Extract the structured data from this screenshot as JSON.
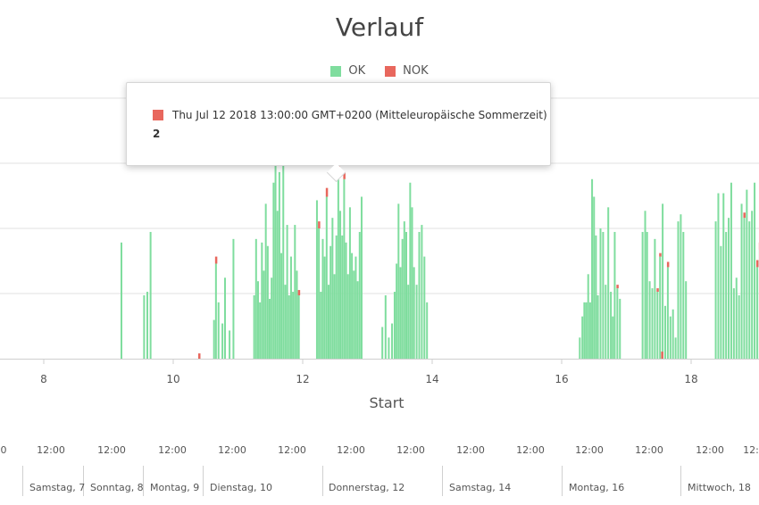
{
  "title": "Verlauf",
  "legend": {
    "ok_label": "OK",
    "nok_label": "NOK"
  },
  "colors": {
    "ok": "#7fdd9e",
    "nok": "#e8675d",
    "grid": "#e2e2e2",
    "axis": "#cfcfcf"
  },
  "tooltip": {
    "timestamp": "Thu Jul 12 2018 13:00:00 GMT+0200 (Mitteleuropäische Sommerzeit)",
    "value": "2"
  },
  "chart_data": {
    "type": "bar",
    "title": "Verlauf",
    "xlabel": "Start",
    "ylabel": "",
    "xlim": [
      7.3,
      19.1
    ],
    "ylim": [
      0,
      5.5
    ],
    "grid": true,
    "legend_position": "top-center",
    "x_ticks": [
      "8",
      "10",
      "12",
      "14",
      "16",
      "18"
    ],
    "series": [
      {
        "name": "OK",
        "color": "#7fdd9e",
        "points": [
          [
            9.2,
            3.3
          ],
          [
            9.55,
            1.8
          ],
          [
            9.6,
            1.9
          ],
          [
            9.65,
            3.6
          ],
          [
            10.63,
            1.1
          ],
          [
            10.66,
            2.7
          ],
          [
            10.7,
            1.6
          ],
          [
            10.76,
            1.0
          ],
          [
            10.8,
            2.3
          ],
          [
            10.87,
            0.8
          ],
          [
            10.93,
            3.4
          ],
          [
            11.25,
            1.8
          ],
          [
            11.28,
            3.4
          ],
          [
            11.31,
            2.2
          ],
          [
            11.34,
            1.6
          ],
          [
            11.37,
            3.3
          ],
          [
            11.4,
            2.5
          ],
          [
            11.43,
            4.4
          ],
          [
            11.46,
            3.2
          ],
          [
            11.49,
            1.7
          ],
          [
            11.52,
            2.3
          ],
          [
            11.55,
            5.0
          ],
          [
            11.58,
            5.5
          ],
          [
            11.61,
            4.2
          ],
          [
            11.64,
            5.3
          ],
          [
            11.67,
            3.0
          ],
          [
            11.7,
            5.6
          ],
          [
            11.73,
            2.1
          ],
          [
            11.76,
            3.8
          ],
          [
            11.79,
            1.8
          ],
          [
            11.82,
            2.9
          ],
          [
            11.85,
            1.9
          ],
          [
            11.88,
            3.8
          ],
          [
            11.91,
            2.5
          ],
          [
            11.94,
            1.8
          ],
          [
            12.22,
            4.5
          ],
          [
            12.25,
            3.7
          ],
          [
            12.28,
            1.9
          ],
          [
            12.31,
            3.4
          ],
          [
            12.34,
            2.9
          ],
          [
            12.37,
            4.6
          ],
          [
            12.4,
            2.1
          ],
          [
            12.43,
            3.2
          ],
          [
            12.46,
            4.0
          ],
          [
            12.49,
            2.4
          ],
          [
            12.52,
            3.5
          ],
          [
            12.55,
            5.4
          ],
          [
            12.58,
            4.2
          ],
          [
            12.61,
            3.5
          ],
          [
            12.64,
            5.1
          ],
          [
            12.67,
            3.3
          ],
          [
            12.7,
            2.4
          ],
          [
            12.73,
            4.3
          ],
          [
            12.76,
            3.0
          ],
          [
            12.79,
            2.5
          ],
          [
            12.82,
            2.9
          ],
          [
            12.85,
            2.2
          ],
          [
            12.88,
            3.6
          ],
          [
            12.91,
            4.6
          ],
          [
            13.23,
            0.9
          ],
          [
            13.28,
            1.8
          ],
          [
            13.33,
            0.6
          ],
          [
            13.38,
            1.0
          ],
          [
            13.42,
            1.9
          ],
          [
            13.45,
            2.7
          ],
          [
            13.48,
            4.4
          ],
          [
            13.51,
            2.6
          ],
          [
            13.54,
            3.4
          ],
          [
            13.57,
            3.9
          ],
          [
            13.6,
            3.6
          ],
          [
            13.63,
            2.1
          ],
          [
            13.66,
            5.0
          ],
          [
            13.69,
            4.3
          ],
          [
            13.72,
            2.6
          ],
          [
            13.76,
            2.1
          ],
          [
            13.8,
            3.6
          ],
          [
            13.84,
            3.8
          ],
          [
            13.88,
            2.9
          ],
          [
            13.92,
            1.6
          ],
          [
            16.28,
            0.6
          ],
          [
            16.32,
            1.2
          ],
          [
            16.35,
            1.6
          ],
          [
            16.38,
            1.6
          ],
          [
            16.41,
            2.4
          ],
          [
            16.44,
            1.6
          ],
          [
            16.47,
            5.1
          ],
          [
            16.5,
            4.6
          ],
          [
            16.53,
            3.5
          ],
          [
            16.56,
            1.8
          ],
          [
            16.6,
            3.7
          ],
          [
            16.64,
            3.6
          ],
          [
            16.68,
            2.1
          ],
          [
            16.72,
            4.3
          ],
          [
            16.76,
            1.9
          ],
          [
            16.79,
            1.2
          ],
          [
            16.82,
            3.6
          ],
          [
            16.86,
            2.0
          ],
          [
            16.9,
            1.7
          ],
          [
            17.25,
            3.6
          ],
          [
            17.29,
            4.2
          ],
          [
            17.32,
            3.6
          ],
          [
            17.36,
            2.2
          ],
          [
            17.4,
            2.0
          ],
          [
            17.44,
            3.4
          ],
          [
            17.48,
            1.9
          ],
          [
            17.52,
            2.9
          ],
          [
            17.56,
            4.4
          ],
          [
            17.6,
            1.5
          ],
          [
            17.64,
            2.6
          ],
          [
            17.68,
            1.2
          ],
          [
            17.72,
            1.4
          ],
          [
            17.76,
            0.6
          ],
          [
            17.8,
            3.9
          ],
          [
            17.84,
            4.1
          ],
          [
            17.88,
            3.6
          ],
          [
            17.92,
            2.2
          ],
          [
            18.38,
            3.9
          ],
          [
            18.42,
            4.7
          ],
          [
            18.46,
            3.2
          ],
          [
            18.5,
            4.7
          ],
          [
            18.54,
            3.6
          ],
          [
            18.58,
            4.0
          ],
          [
            18.62,
            5.0
          ],
          [
            18.66,
            2.0
          ],
          [
            18.7,
            2.3
          ],
          [
            18.74,
            1.8
          ],
          [
            18.78,
            4.4
          ],
          [
            18.82,
            4.0
          ],
          [
            18.86,
            4.8
          ],
          [
            18.9,
            3.9
          ],
          [
            18.94,
            4.2
          ],
          [
            18.98,
            5.0
          ],
          [
            19.02,
            2.6
          ],
          [
            19.06,
            3.1
          ]
        ]
      },
      {
        "name": "NOK",
        "color": "#e8675d",
        "points": [
          [
            10.4,
            0.15
          ],
          [
            10.66,
            0.2
          ],
          [
            11.94,
            0.15
          ],
          [
            12.25,
            0.2
          ],
          [
            12.37,
            0.25
          ],
          [
            12.55,
            0.2
          ],
          [
            12.64,
            0.2
          ],
          [
            16.86,
            0.1
          ],
          [
            17.48,
            0.1
          ],
          [
            17.52,
            0.1
          ],
          [
            17.55,
            0.2
          ],
          [
            17.64,
            0.15
          ],
          [
            18.82,
            0.15
          ],
          [
            19.02,
            0.2
          ],
          [
            19.06,
            0.2
          ]
        ]
      }
    ]
  },
  "timeline": {
    "hour_labels": [
      "0",
      "12:00",
      "12:00",
      "12:00",
      "12:00",
      "12:00",
      "12:00",
      "12:00",
      "12:00",
      "12:00",
      "12:00",
      "12:00",
      "12:00",
      "12:00",
      "0"
    ],
    "day_labels": [
      "Samstag, 7",
      "Sonntag, 8",
      "Montag, 9",
      "Dienstag, 10",
      "Donnerstag, 12",
      "Samstag, 14",
      "Montag, 16",
      "Mittwoch, 18"
    ]
  }
}
